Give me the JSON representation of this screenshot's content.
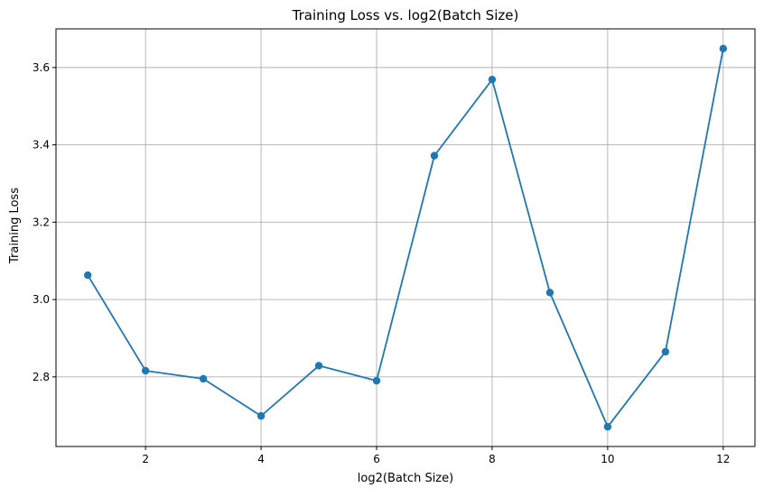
{
  "colors": {
    "series": "#1f77b4",
    "grid": "#b0b0b0",
    "axis": "#000000",
    "background": "#ffffff"
  },
  "chart_data": {
    "type": "line",
    "title": "Training Loss vs. log2(Batch Size)",
    "xlabel": "log2(Batch Size)",
    "ylabel": "Training Loss",
    "xlim": [
      0.45,
      12.55
    ],
    "ylim": [
      2.62,
      3.7
    ],
    "xticks": [
      2,
      4,
      6,
      8,
      10,
      12
    ],
    "yticks": [
      2.8,
      3.0,
      3.2,
      3.4,
      3.6
    ],
    "xtick_labels": [
      "2",
      "4",
      "6",
      "8",
      "10",
      "12"
    ],
    "ytick_labels": [
      "2.8",
      "3.0",
      "3.2",
      "3.4",
      "3.6"
    ],
    "grid": true,
    "marker": "circle",
    "series": [
      {
        "x": [
          1,
          2,
          3,
          4,
          5,
          6,
          7,
          8,
          9,
          10,
          11,
          12
        ],
        "values": [
          3.063,
          2.816,
          2.795,
          2.699,
          2.829,
          2.79,
          3.372,
          3.569,
          3.018,
          2.671,
          2.865,
          3.649
        ]
      }
    ]
  }
}
